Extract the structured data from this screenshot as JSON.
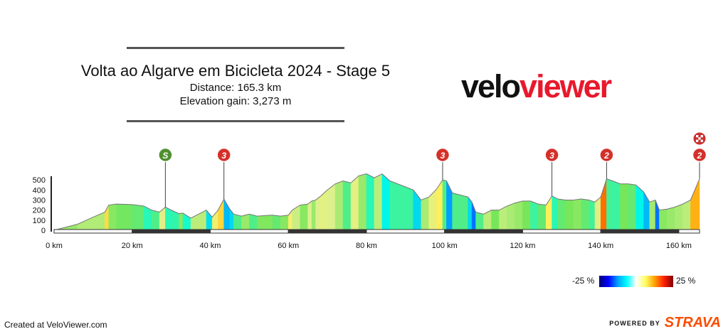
{
  "header": {
    "title": "Volta ao Algarve em Bicicleta 2024 - Stage 5",
    "distance": "Distance: 165.3 km",
    "elevation": "Elevation gain: 3,273 m"
  },
  "logo": {
    "part1": "velo",
    "part2": "viewer"
  },
  "footer": {
    "created": "Created at VeloViewer.com",
    "powered": "POWERED BY",
    "strava": "STRAVA"
  },
  "legend": {
    "min_label": "-25 %",
    "max_label": "25 %"
  },
  "colors": {
    "brand_red": "#e8192c",
    "strava_orange": "#fc4c02",
    "sprint_green": "#4f8f2f",
    "climb_red": "#d4302a"
  },
  "chart_data": {
    "type": "area",
    "xlim": [
      0,
      165.3
    ],
    "ylim": [
      0,
      550
    ],
    "x_ticks": [
      0,
      20,
      40,
      60,
      80,
      100,
      120,
      140,
      160
    ],
    "x_tick_labels": [
      "0 km",
      "20 km",
      "40 km",
      "60 km",
      "80 km",
      "100 km",
      "120 km",
      "140 km",
      "160 km"
    ],
    "y_ticks": [
      0,
      100,
      200,
      300,
      400,
      500
    ],
    "y_tick_labels": [
      "0",
      "100",
      "200",
      "300",
      "400",
      "500"
    ],
    "profile": {
      "x": [
        0,
        2,
        6,
        10,
        13,
        14,
        16,
        20,
        23,
        25,
        27,
        28.5,
        30,
        32,
        33,
        35,
        37,
        39,
        40.5,
        42,
        43.5,
        45,
        46,
        48,
        50,
        52,
        54,
        56,
        58,
        60,
        61,
        63,
        65,
        66,
        67,
        68,
        70,
        72,
        74,
        76,
        78,
        80,
        82,
        84,
        86,
        88,
        90,
        92,
        94,
        96,
        98,
        99.5,
        100.5,
        102,
        104,
        106,
        107,
        108,
        110,
        112,
        114,
        116,
        118,
        120,
        122,
        124,
        126,
        127.5,
        129,
        131,
        133,
        135,
        137,
        138.5,
        140,
        141.5,
        143,
        145,
        147,
        149,
        151,
        152.5,
        154,
        155,
        157,
        159,
        161,
        163,
        165.3
      ],
      "elevation": [
        0,
        20,
        60,
        130,
        180,
        250,
        260,
        255,
        240,
        200,
        180,
        230,
        200,
        165,
        170,
        120,
        160,
        200,
        130,
        200,
        310,
        210,
        160,
        140,
        160,
        140,
        145,
        150,
        140,
        150,
        200,
        250,
        260,
        290,
        300,
        330,
        400,
        460,
        490,
        470,
        540,
        560,
        520,
        560,
        490,
        460,
        430,
        400,
        300,
        330,
        410,
        500,
        490,
        370,
        350,
        330,
        280,
        180,
        160,
        200,
        200,
        240,
        270,
        290,
        290,
        260,
        250,
        340,
        310,
        300,
        300,
        310,
        300,
        280,
        330,
        510,
        490,
        460,
        460,
        450,
        380,
        280,
        300,
        200,
        210,
        230,
        260,
        300,
        510
      ]
    },
    "annotations": [
      {
        "km": 28.5,
        "type": "sprint",
        "label": "S"
      },
      {
        "km": 43.5,
        "type": "climb",
        "label": "3"
      },
      {
        "km": 99.5,
        "type": "climb",
        "label": "3"
      },
      {
        "km": 127.5,
        "type": "climb",
        "label": "3"
      },
      {
        "km": 141.5,
        "type": "climb",
        "label": "2"
      },
      {
        "km": 165.3,
        "type": "climb",
        "label": "2"
      },
      {
        "km": 165.3,
        "type": "finish",
        "label": ""
      }
    ]
  }
}
